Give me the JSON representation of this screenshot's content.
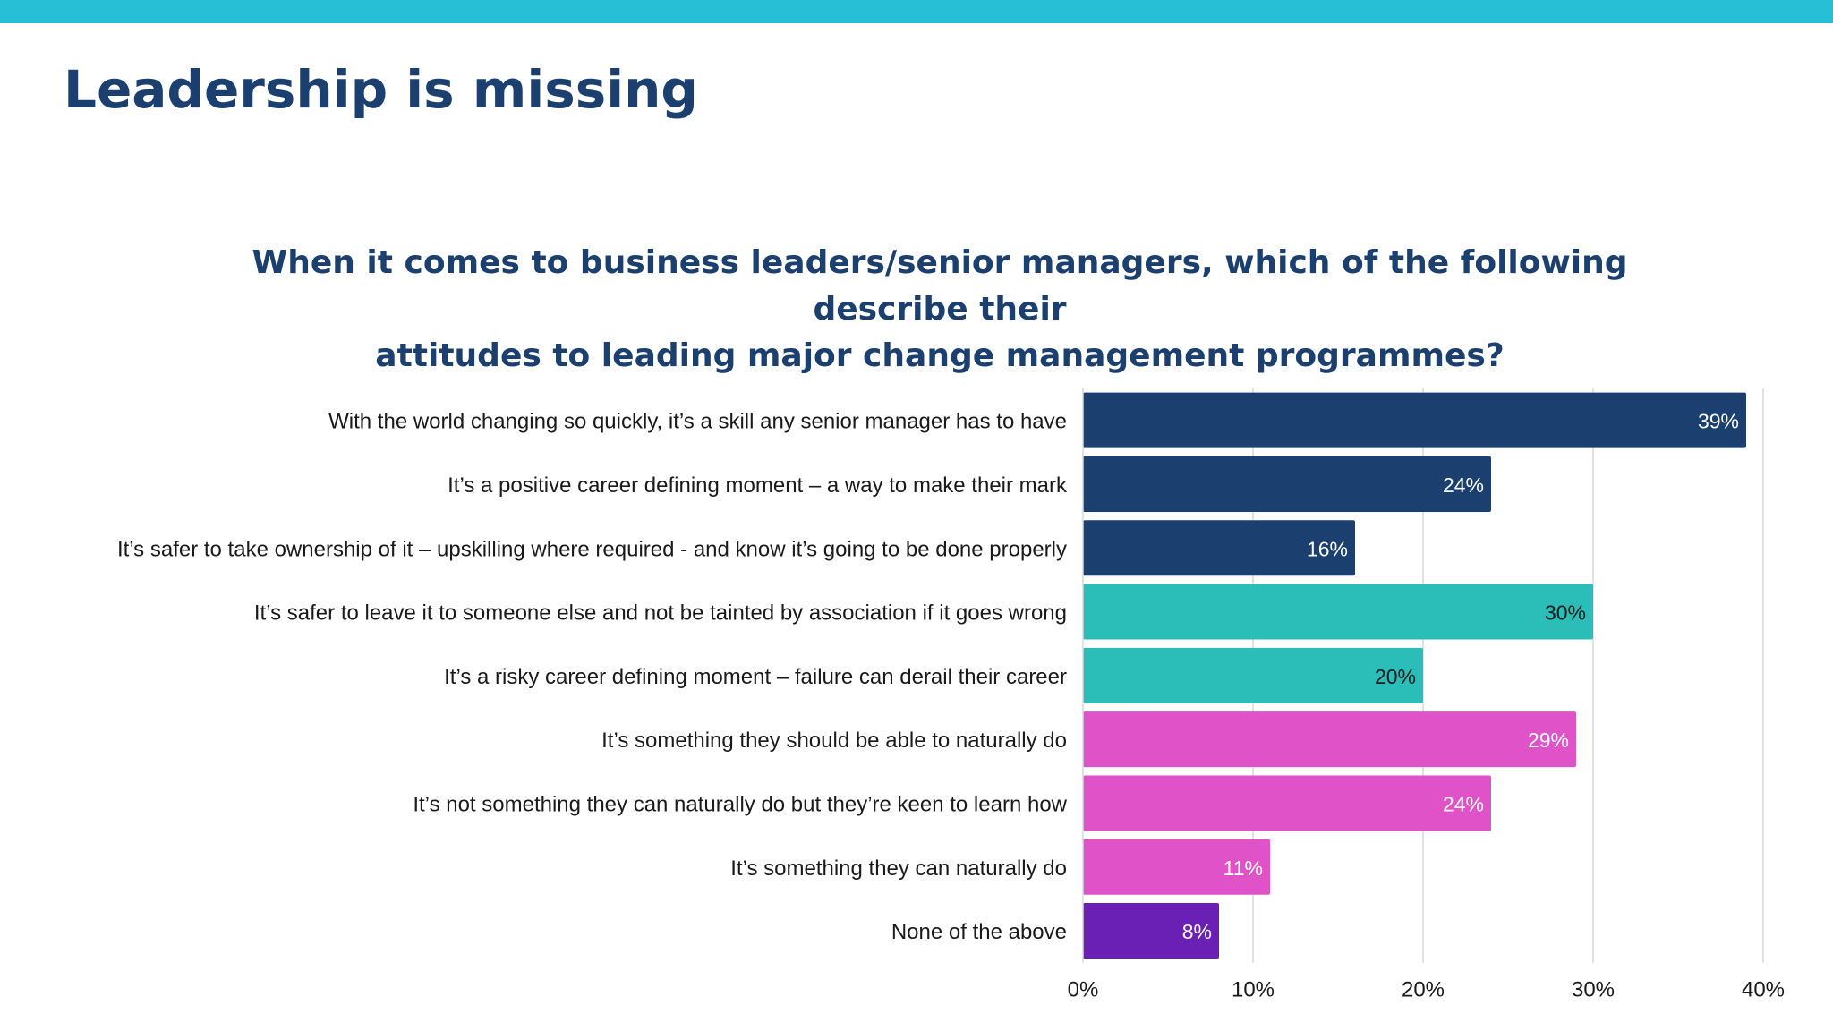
{
  "slide": {
    "title": "Leadership is missing",
    "accent_color": "#26bfd6"
  },
  "chart_data": {
    "type": "bar",
    "orientation": "horizontal",
    "title_lines": [
      "When it comes to business leaders/senior managers, which of the following describe their",
      "attitudes to leading major change management programmes?"
    ],
    "categories": [
      "With the world changing so quickly, it’s a skill any senior manager has to have",
      "It’s a positive career defining moment – a way to make their mark",
      "It’s safer to take ownership of it – upskilling where required - and know it’s going to be done properly",
      "It’s safer to leave it to someone else and not be tainted by association if it goes wrong",
      "It’s a risky career defining moment – failure can derail their career",
      "It’s something they should be able to naturally do",
      "It’s not something they can naturally do but they’re keen to learn how",
      "It’s something they can naturally do",
      "None of the above"
    ],
    "values": [
      39,
      24,
      16,
      30,
      20,
      29,
      24,
      11,
      8
    ],
    "value_labels": [
      "39%",
      "24%",
      "16%",
      "30%",
      "20%",
      "29%",
      "24%",
      "11%",
      "8%"
    ],
    "bar_colors": [
      "#1b3f6e",
      "#1b3f6e",
      "#1b3f6e",
      "#2bbdb8",
      "#2bbdb8",
      "#e052c8",
      "#e052c8",
      "#e052c8",
      "#6a1fb5"
    ],
    "label_colors": [
      "#ffffff",
      "#ffffff",
      "#ffffff",
      "#1a1a1a",
      "#1a1a1a",
      "#ffffff",
      "#ffffff",
      "#ffffff",
      "#ffffff"
    ],
    "x_ticks": [
      "0%",
      "10%",
      "20%",
      "30%",
      "40%"
    ],
    "xlim": [
      0,
      40
    ],
    "grid": true,
    "legend": "none"
  }
}
